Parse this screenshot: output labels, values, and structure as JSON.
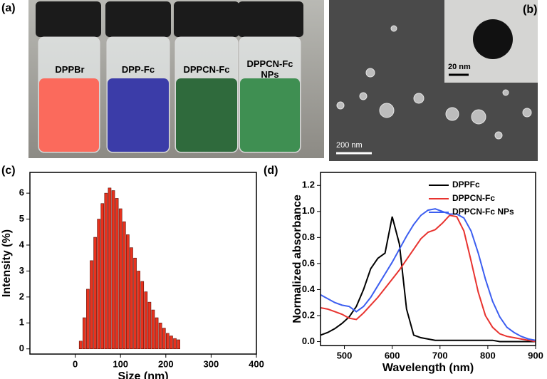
{
  "panels": {
    "a": "(a)",
    "b": "(b)",
    "c": "(c)",
    "d": "(d)"
  },
  "photo": {
    "labels": [
      "DPPBr",
      "DPP-Fc",
      "DPPCN-Fc",
      "DPPCN-Fc NPs"
    ]
  },
  "sem": {
    "scale_bar": "200 nm",
    "inset_scale_bar": "20 nm"
  },
  "chart_data": [
    {
      "type": "bar",
      "xlabel": "Size (nm)",
      "ylabel": "Intensity (%)",
      "x": [
        12,
        20,
        28,
        36,
        44,
        52,
        60,
        68,
        76,
        84,
        92,
        100,
        108,
        116,
        124,
        132,
        140,
        148,
        156,
        164,
        172,
        180,
        188,
        196,
        204,
        212,
        220,
        228
      ],
      "values": [
        0.3,
        1.2,
        2.3,
        3.4,
        4.3,
        5.0,
        5.6,
        6.0,
        6.2,
        6.1,
        5.8,
        5.4,
        4.9,
        4.4,
        3.9,
        3.5,
        3.0,
        2.6,
        2.2,
        1.8,
        1.5,
        1.2,
        1.0,
        0.8,
        0.6,
        0.5,
        0.4,
        0.35
      ],
      "color": "#e8321e",
      "xlim": [
        -100,
        400
      ],
      "xticks": [
        0,
        100,
        200,
        300,
        400
      ],
      "ylim": [
        -0.2,
        6.8
      ],
      "yticks": [
        0,
        1,
        2,
        3,
        4,
        5,
        6
      ]
    },
    {
      "type": "line",
      "xlabel": "Wavelength (nm)",
      "ylabel": "Normalized absorbance",
      "x": [
        450,
        465,
        480,
        495,
        510,
        525,
        540,
        555,
        570,
        585,
        600,
        615,
        630,
        645,
        660,
        675,
        690,
        705,
        720,
        735,
        750,
        765,
        780,
        795,
        810,
        825,
        840,
        855,
        870,
        885,
        900
      ],
      "series": [
        {
          "name": "DPPFc",
          "color": "#000000",
          "values": [
            0.05,
            0.07,
            0.1,
            0.14,
            0.19,
            0.27,
            0.4,
            0.56,
            0.64,
            0.68,
            0.96,
            0.75,
            0.25,
            0.05,
            0.03,
            0.02,
            0.01,
            0.01,
            0.01,
            0.01,
            0.01,
            0.01,
            0.01,
            0.01,
            0.01,
            0.0,
            0.0,
            0.0,
            0.0,
            0.0,
            0.0
          ]
        },
        {
          "name": "DPPCN-Fc",
          "color": "#e8332f",
          "values": [
            0.26,
            0.25,
            0.23,
            0.21,
            0.18,
            0.17,
            0.22,
            0.28,
            0.34,
            0.41,
            0.48,
            0.55,
            0.63,
            0.71,
            0.79,
            0.84,
            0.86,
            0.91,
            0.97,
            0.96,
            0.85,
            0.62,
            0.38,
            0.2,
            0.11,
            0.06,
            0.04,
            0.03,
            0.02,
            0.01,
            0.0
          ]
        },
        {
          "name": "DPPCN-Fc NPs",
          "color": "#3c5ef0",
          "values": [
            0.36,
            0.33,
            0.3,
            0.28,
            0.27,
            0.23,
            0.27,
            0.34,
            0.43,
            0.52,
            0.61,
            0.71,
            0.81,
            0.9,
            0.97,
            1.01,
            1.02,
            1.0,
            0.98,
            0.98,
            0.95,
            0.85,
            0.68,
            0.48,
            0.31,
            0.19,
            0.11,
            0.07,
            0.04,
            0.02,
            0.01
          ]
        }
      ],
      "xlim": [
        450,
        900
      ],
      "xticks": [
        500,
        600,
        700,
        800,
        900
      ],
      "ylim": [
        -0.03,
        1.3
      ],
      "yticks": [
        {
          "value": 0,
          "label": "0.0"
        },
        0.2,
        0.4,
        0.6,
        0.8,
        {
          "value": 1,
          "label": "1.0"
        },
        1.2
      ],
      "legend": "upper right"
    }
  ]
}
